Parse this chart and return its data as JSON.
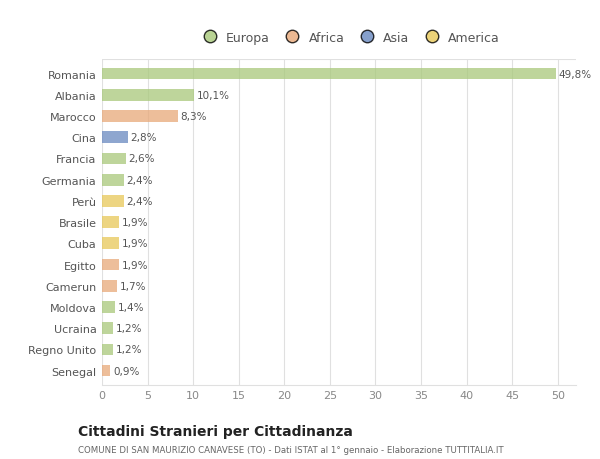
{
  "categories": [
    "Romania",
    "Albania",
    "Marocco",
    "Cina",
    "Francia",
    "Germania",
    "Perù",
    "Brasile",
    "Cuba",
    "Egitto",
    "Camerun",
    "Moldova",
    "Ucraina",
    "Regno Unito",
    "Senegal"
  ],
  "values": [
    49.8,
    10.1,
    8.3,
    2.8,
    2.6,
    2.4,
    2.4,
    1.9,
    1.9,
    1.9,
    1.7,
    1.4,
    1.2,
    1.2,
    0.9
  ],
  "labels": [
    "49,8%",
    "10,1%",
    "8,3%",
    "2,8%",
    "2,6%",
    "2,4%",
    "2,4%",
    "1,9%",
    "1,9%",
    "1,9%",
    "1,7%",
    "1,4%",
    "1,2%",
    "1,2%",
    "0,9%"
  ],
  "colors": [
    "#a8c87a",
    "#a8c87a",
    "#e8a878",
    "#6888c0",
    "#a8c87a",
    "#a8c87a",
    "#e8c858",
    "#e8c858",
    "#e8c858",
    "#e8a878",
    "#e8a878",
    "#a8c87a",
    "#a8c87a",
    "#a8c87a",
    "#e8a878"
  ],
  "continent_colors": {
    "Europa": "#a8c87a",
    "Africa": "#e8a878",
    "Asia": "#6888c0",
    "America": "#e8c858"
  },
  "legend_labels": [
    "Europa",
    "Africa",
    "Asia",
    "America"
  ],
  "title": "Cittadini Stranieri per Cittadinanza",
  "subtitle": "COMUNE DI SAN MAURIZIO CANAVESE (TO) - Dati ISTAT al 1° gennaio - Elaborazione TUTTITALIA.IT",
  "xlim": [
    0,
    52
  ],
  "xticks": [
    0,
    5,
    10,
    15,
    20,
    25,
    30,
    35,
    40,
    45,
    50
  ],
  "bg_color": "#ffffff",
  "grid_color": "#e0e0e0",
  "bar_height": 0.55
}
